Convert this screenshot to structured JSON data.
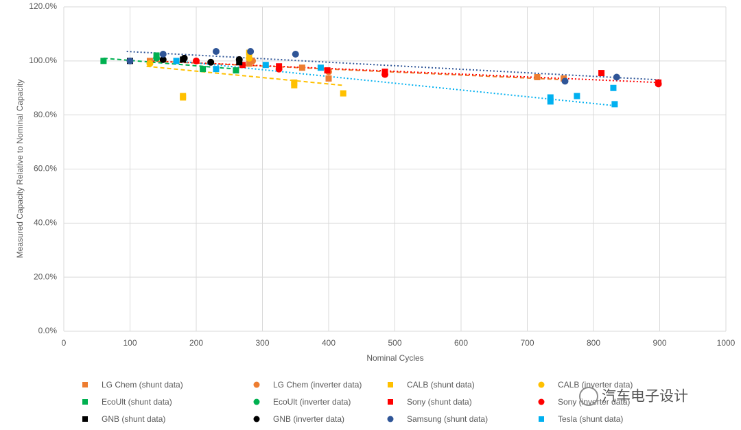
{
  "chart_data": {
    "type": "scatter",
    "xlabel": "Nominal Cycles",
    "ylabel": "Measured Capacity Relative to Nominal Capacity",
    "xlim": [
      0,
      1000
    ],
    "xticks": [
      0,
      100,
      200,
      300,
      400,
      500,
      600,
      700,
      800,
      900,
      1000
    ],
    "ylim": [
      0,
      120
    ],
    "yticks": [
      {
        "value": 0,
        "label": "0.0%"
      },
      {
        "value": 20,
        "label": "20.0%"
      },
      {
        "value": 40,
        "label": "40.0%"
      },
      {
        "value": 60,
        "label": "60.0%"
      },
      {
        "value": 80,
        "label": "80.0%"
      },
      {
        "value": 100,
        "label": "100.0%"
      },
      {
        "value": 120,
        "label": "120.0%"
      }
    ],
    "grid": true,
    "legend": "bottom",
    "watermark": "汽车电子设计",
    "series": [
      {
        "name": "LG Chem (shunt data)",
        "color": "#ED7D31",
        "marker": "square",
        "x": [
          130,
          280,
          360,
          400,
          715,
          755
        ],
        "values": [
          100,
          99,
          97.5,
          93.5,
          94,
          93.5
        ],
        "trendline": {
          "style": "dashed",
          "x": [
            130,
            760
          ],
          "y": [
            100,
            93
          ]
        }
      },
      {
        "name": "LG Chem (inverter data)",
        "color": "#ED7D31",
        "marker": "circle",
        "x": [
          285,
          400
        ],
        "values": [
          100,
          96
        ]
      },
      {
        "name": "CALB (shunt data)",
        "color": "#FFC000",
        "marker": "square",
        "x": [
          180,
          180,
          280,
          348,
          348,
          422
        ],
        "values": [
          86.5,
          87,
          103,
          91,
          92,
          88
        ],
        "trendline": {
          "style": "dashed",
          "x": [
            125,
            420
          ],
          "y": [
            98,
            91
          ]
        }
      },
      {
        "name": "CALB (inverter data)",
        "color": "#FFC000",
        "marker": "circle",
        "x": [
          130,
          280
        ],
        "values": [
          99,
          101
        ]
      },
      {
        "name": "EcoUlt (shunt data)",
        "color": "#00B050",
        "marker": "square",
        "x": [
          60,
          140,
          210,
          260
        ],
        "values": [
          100,
          102,
          97,
          96.5
        ],
        "trendline": {
          "style": "dashed",
          "x": [
            60,
            260
          ],
          "y": [
            101,
            97
          ]
        }
      },
      {
        "name": "EcoUlt (inverter data)",
        "color": "#00B050",
        "marker": "circle",
        "x": [
          140
        ],
        "values": [
          101
        ]
      },
      {
        "name": "Sony (shunt data)",
        "color": "#FF0000",
        "marker": "square",
        "x": [
          270,
          325,
          398,
          485,
          812,
          898
        ],
        "values": [
          98.5,
          98,
          96.5,
          96,
          95.5,
          92
        ],
        "trendline": {
          "style": "dotted",
          "x": [
            130,
            900
          ],
          "y": [
            100,
            92
          ]
        }
      },
      {
        "name": "Sony (inverter data)",
        "color": "#FF0000",
        "marker": "circle",
        "x": [
          200,
          325,
          485,
          898
        ],
        "values": [
          100,
          97,
          95,
          91.5
        ]
      },
      {
        "name": "GNB (shunt data)",
        "color": "#000000",
        "marker": "square",
        "x": [
          100,
          180,
          265
        ],
        "values": [
          100,
          100.5,
          99.5
        ]
      },
      {
        "name": "GNB (inverter data)",
        "color": "#000000",
        "marker": "circle",
        "x": [
          150,
          182,
          222,
          265
        ],
        "values": [
          100.5,
          101,
          99.5,
          100.5
        ]
      },
      {
        "name": "Samsung (shunt data)",
        "color": "#2F5597",
        "marker": "circle",
        "x": [
          100,
          150,
          230,
          282,
          350,
          757,
          835
        ],
        "values": [
          100,
          102.5,
          103.5,
          103.5,
          102.5,
          92.5,
          94
        ],
        "trendline": {
          "style": "dotted",
          "x": [
            95,
            900
          ],
          "y": [
            103.5,
            93
          ]
        }
      },
      {
        "name": "Tesla (shunt data)",
        "color": "#00B0F0",
        "marker": "square",
        "x": [
          170,
          230,
          305,
          388,
          735,
          735,
          775,
          830,
          832
        ],
        "values": [
          100,
          97,
          98.5,
          97.5,
          85,
          86.5,
          87,
          90,
          84
        ],
        "trendline": {
          "style": "dotted",
          "x": [
            170,
            830
          ],
          "y": [
            100,
            83.5
          ]
        }
      }
    ]
  }
}
